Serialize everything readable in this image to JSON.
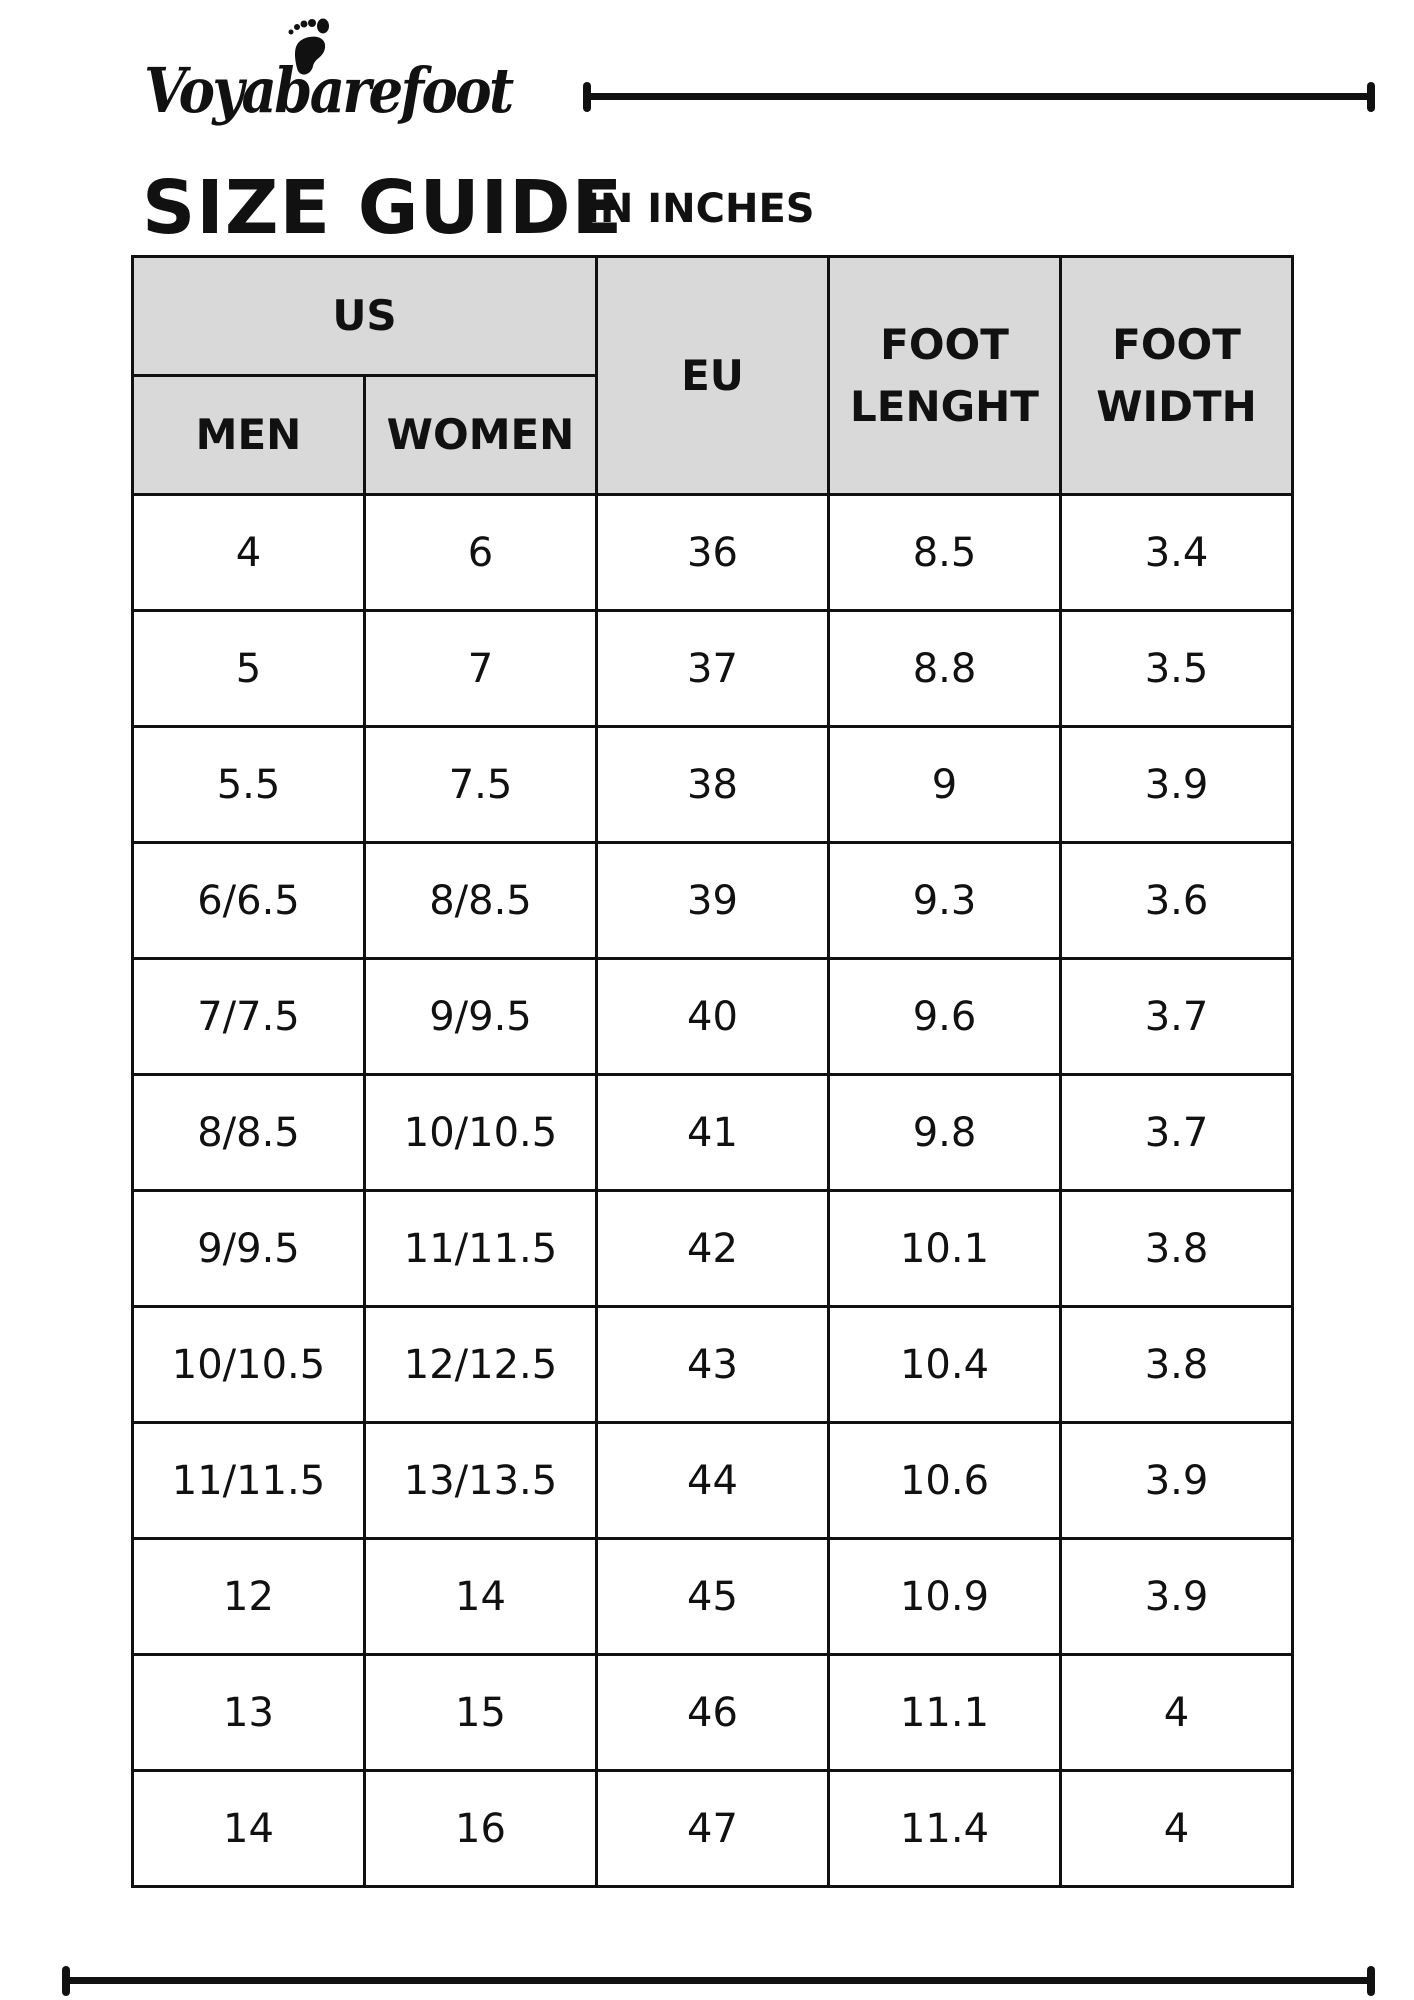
{
  "brand": {
    "name": "Voyabarefoot"
  },
  "title": "SIZE GUIDE",
  "unit_label": "IN INCHES",
  "headers": {
    "us": "US",
    "men": "MEN",
    "women": "WOMEN",
    "eu": "EU",
    "foot_length": "FOOT LENGHT",
    "foot_width": "FOOT WIDTH"
  },
  "rows": [
    {
      "men": "4",
      "women": "6",
      "eu": "36",
      "length": "8.5",
      "width": "3.4"
    },
    {
      "men": "5",
      "women": "7",
      "eu": "37",
      "length": "8.8",
      "width": "3.5"
    },
    {
      "men": "5.5",
      "women": "7.5",
      "eu": "38",
      "length": "9",
      "width": "3.9"
    },
    {
      "men": "6/6.5",
      "women": "8/8.5",
      "eu": "39",
      "length": "9.3",
      "width": "3.6"
    },
    {
      "men": "7/7.5",
      "women": "9/9.5",
      "eu": "40",
      "length": "9.6",
      "width": "3.7"
    },
    {
      "men": "8/8.5",
      "women": "10/10.5",
      "eu": "41",
      "length": "9.8",
      "width": "3.7"
    },
    {
      "men": "9/9.5",
      "women": "11/11.5",
      "eu": "42",
      "length": "10.1",
      "width": "3.8"
    },
    {
      "men": "10/10.5",
      "women": "12/12.5",
      "eu": "43",
      "length": "10.4",
      "width": "3.8"
    },
    {
      "men": "11/11.5",
      "women": "13/13.5",
      "eu": "44",
      "length": "10.6",
      "width": "3.9"
    },
    {
      "men": "12",
      "women": "14",
      "eu": "45",
      "length": "10.9",
      "width": "3.9"
    },
    {
      "men": "13",
      "women": "15",
      "eu": "46",
      "length": "11.1",
      "width": "4"
    },
    {
      "men": "14",
      "women": "16",
      "eu": "47",
      "length": "11.4",
      "width": "4"
    }
  ],
  "colors": {
    "header_bg": "#d9d9d9",
    "ink": "#111111"
  }
}
